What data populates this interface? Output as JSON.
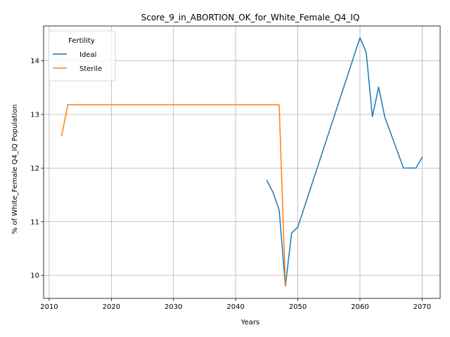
{
  "chart_data": {
    "type": "line",
    "title": "Score_9_in_ABORTION_OK_for_White_Female_Q4_IQ",
    "xlabel": "Years",
    "ylabel": "% of White_Female Q4_IQ Population",
    "xlim": [
      2009.1,
      2072.9
    ],
    "ylim": [
      9.57,
      14.65
    ],
    "xticks": [
      2010,
      2020,
      2030,
      2040,
      2050,
      2060,
      2070
    ],
    "yticks": [
      10,
      11,
      12,
      13,
      14
    ],
    "grid": true,
    "legend": {
      "title": "Fertility",
      "placement": "top-left"
    },
    "series": [
      {
        "name": "Ideal",
        "color": "#1f77b4",
        "x": [
          2045,
          2046,
          2047,
          2048,
          2049,
          2050,
          2060,
          2061,
          2062,
          2063,
          2064,
          2067,
          2068,
          2069,
          2070
        ],
        "y": [
          11.77,
          11.55,
          11.22,
          9.8,
          10.79,
          10.9,
          14.43,
          14.16,
          12.96,
          13.51,
          12.95,
          12.0,
          12.0,
          12.0,
          12.2
        ]
      },
      {
        "name": "Sterile",
        "color": "#ff7f0e",
        "x": [
          2012,
          2013,
          2047,
          2048
        ],
        "y": [
          12.6,
          13.18,
          13.18,
          9.8
        ]
      }
    ]
  }
}
